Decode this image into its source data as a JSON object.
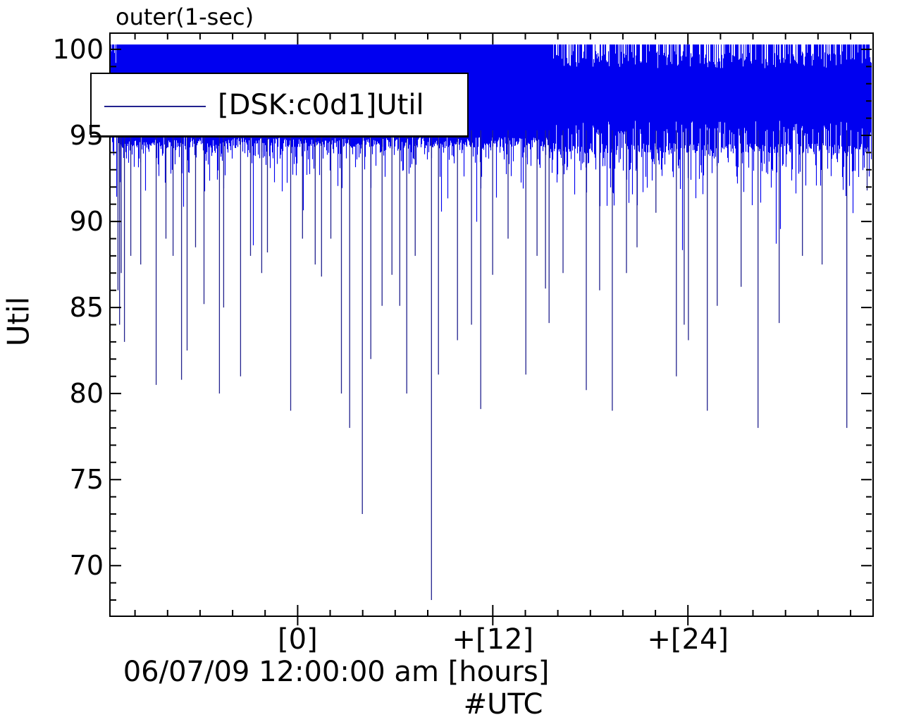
{
  "title": "outer(1-sec)",
  "legend": {
    "entries": [
      {
        "label": "[DSK:c0d1]Util",
        "color": "#0000f0"
      }
    ]
  },
  "chart_data": {
    "type": "line",
    "title": "outer(1-sec)",
    "ylabel": "Util",
    "xlabel_line1": "06/07/09 12:00:00 am [hours]",
    "xlabel_line2": "#UTC",
    "x_unit": "hours relative to 06/07/09 12:00:00 am UTC",
    "xlim": [
      -11.5,
      35.3
    ],
    "ylim": [
      67.1,
      100.9
    ],
    "x_major_ticks": [
      {
        "hour": 0,
        "label": "[0]"
      },
      {
        "hour": 12,
        "label": "+[12]"
      },
      {
        "hour": 24,
        "label": "+[24]"
      }
    ],
    "x_minor_tick_step_hours": 2,
    "y_major_ticks": [
      100,
      95,
      90,
      85,
      80,
      75,
      70
    ],
    "y_minor_tick_step": 1,
    "series": [
      {
        "name": "[DSK:c0d1]Util",
        "color": "#0000f0",
        "sample_interval": "1-sec"
      }
    ],
    "baseline_value": 100,
    "band_profile": [
      {
        "from_hour": -11.5,
        "to_hour": -11.1,
        "top_gap_density": 0.45,
        "solid_bottom": 94.8,
        "ragged_bottom": 93.8,
        "tail_rate": 1.0
      },
      {
        "from_hour": -11.1,
        "to_hour": 15.4,
        "top_gap_density": 0.0,
        "solid_bottom": 94.6,
        "ragged_bottom": 93.6,
        "tail_rate": 1.1
      },
      {
        "from_hour": 15.4,
        "to_hour": 35.3,
        "top_gap_density": 0.4,
        "solid_bottom": 94.25,
        "ragged_bottom": 92.9,
        "tail_rate": 1.15
      }
    ],
    "deep_spikes": [
      [
        -11.05,
        86.0
      ],
      [
        -10.95,
        84.0
      ],
      [
        -10.85,
        87.0
      ],
      [
        -10.65,
        83.0
      ],
      [
        -10.26,
        88.0
      ],
      [
        -9.65,
        87.5
      ],
      [
        -8.7,
        80.5
      ],
      [
        -8.1,
        89.0
      ],
      [
        -7.66,
        88.0
      ],
      [
        -7.14,
        80.8
      ],
      [
        -6.8,
        82.5
      ],
      [
        -6.28,
        88.5
      ],
      [
        -5.76,
        85.2
      ],
      [
        -4.81,
        80.0
      ],
      [
        -4.55,
        85.0
      ],
      [
        -3.51,
        81.0
      ],
      [
        -2.9,
        88.0
      ],
      [
        -2.21,
        87.0
      ],
      [
        -1.86,
        88.2
      ],
      [
        -0.43,
        79.0
      ],
      [
        0.3,
        89.0
      ],
      [
        1.08,
        87.5
      ],
      [
        1.47,
        86.8
      ],
      [
        2.04,
        89.0
      ],
      [
        2.69,
        80.0
      ],
      [
        3.2,
        78.0
      ],
      [
        3.98,
        73.0
      ],
      [
        4.5,
        82.0
      ],
      [
        5.19,
        85.1
      ],
      [
        5.8,
        86.9
      ],
      [
        6.28,
        85.1
      ],
      [
        6.71,
        80.0
      ],
      [
        7.23,
        88.0
      ],
      [
        8.23,
        68.0
      ],
      [
        8.66,
        81.1
      ],
      [
        9.83,
        83.1
      ],
      [
        10.69,
        84.0
      ],
      [
        11.26,
        79.1
      ],
      [
        11.99,
        86.9
      ],
      [
        12.94,
        89.0
      ],
      [
        14.03,
        81.1
      ],
      [
        14.72,
        88.0
      ],
      [
        15.24,
        86.1
      ],
      [
        15.46,
        84.1
      ],
      [
        16.32,
        87.0
      ],
      [
        17.75,
        80.2
      ],
      [
        18.57,
        86.0
      ],
      [
        19.35,
        79.0
      ],
      [
        20.22,
        87.0
      ],
      [
        20.87,
        88.5
      ],
      [
        22.03,
        90.5
      ],
      [
        23.29,
        81.0
      ],
      [
        23.77,
        84.0
      ],
      [
        24.03,
        83.1
      ],
      [
        25.19,
        79.0
      ],
      [
        25.8,
        85.1
      ],
      [
        27.27,
        86.2
      ],
      [
        28.31,
        78.0
      ],
      [
        29.61,
        84.1
      ],
      [
        31.04,
        88.0
      ],
      [
        32.25,
        87.5
      ],
      [
        33.77,
        78.0
      ],
      [
        35.02,
        91.8
      ]
    ],
    "colors": {
      "band": "#0000f0",
      "thin_spike": "#22228e",
      "axis": "#000000",
      "background": "#ffffff"
    },
    "legend_position": "upper-left",
    "grid": false
  }
}
